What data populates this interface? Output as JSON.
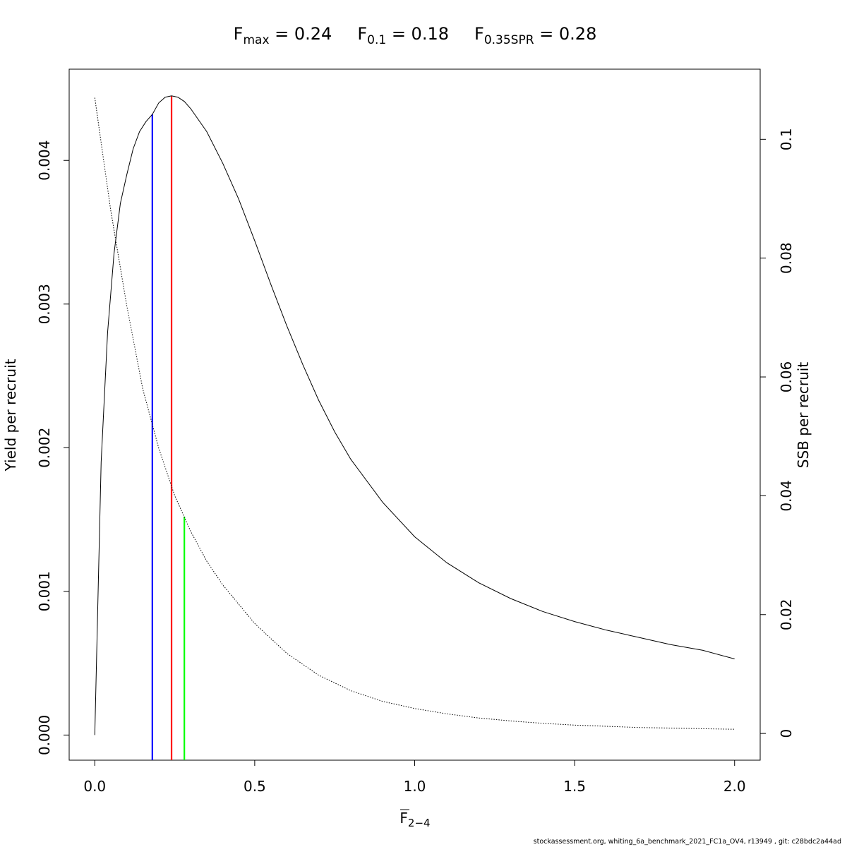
{
  "chart_data": {
    "type": "line",
    "title_parts": [
      {
        "base": "F",
        "sub": "max",
        "value": "0.24"
      },
      {
        "base": "F",
        "sub": "0.1",
        "value": "0.18"
      },
      {
        "base": "F",
        "sub": "0.35SPR",
        "value": "0.28"
      }
    ],
    "xlabel": {
      "base": "F",
      "sub": "2−4",
      "overline": true
    },
    "ylabel_left": "Yield per recruit",
    "ylabel_right": "SSB per recruit",
    "xlim": [
      -0.08,
      2.08
    ],
    "ylim_left": [
      -0.000175,
      0.004635
    ],
    "ylim_right": [
      -0.0045,
      0.1118
    ],
    "x_ticks": [
      0.0,
      0.5,
      1.0,
      1.5,
      2.0
    ],
    "x_tick_labels": [
      "0.0",
      "0.5",
      "1.0",
      "1.5",
      "2.0"
    ],
    "y_left_ticks": [
      0.0,
      0.001,
      0.002,
      0.003,
      0.004
    ],
    "y_left_tick_labels": [
      "0.000",
      "0.001",
      "0.002",
      "0.003",
      "0.004"
    ],
    "y_right_ticks": [
      0,
      0.02,
      0.04,
      0.06,
      0.08,
      0.1
    ],
    "y_right_tick_labels": [
      "0",
      "0.02",
      "0.04",
      "0.06",
      "0.08",
      "0.1"
    ],
    "series": [
      {
        "axis": "left",
        "style": "solid",
        "color": "#000000",
        "x": [
          0.0,
          0.02,
          0.04,
          0.06,
          0.08,
          0.1,
          0.12,
          0.14,
          0.16,
          0.18,
          0.2,
          0.22,
          0.24,
          0.26,
          0.28,
          0.3,
          0.35,
          0.4,
          0.45,
          0.5,
          0.55,
          0.6,
          0.65,
          0.7,
          0.75,
          0.8,
          0.9,
          1.0,
          1.1,
          1.2,
          1.3,
          1.4,
          1.5,
          1.6,
          1.7,
          1.8,
          1.9,
          2.0
        ],
        "y": [
          0.0,
          0.0019,
          0.0028,
          0.00335,
          0.0037,
          0.0039,
          0.00408,
          0.0042,
          0.00427,
          0.00432,
          0.0044,
          0.00444,
          0.00445,
          0.00444,
          0.00441,
          0.00436,
          0.0042,
          0.00398,
          0.00373,
          0.00344,
          0.00314,
          0.00285,
          0.00258,
          0.00233,
          0.00211,
          0.00192,
          0.00162,
          0.00138,
          0.0012,
          0.00106,
          0.00095,
          0.00086,
          0.00079,
          0.00073,
          0.00068,
          0.00063,
          0.00059,
          0.00053
        ]
      },
      {
        "axis": "right",
        "style": "dotted",
        "color": "#000000",
        "x": [
          0.0,
          0.05,
          0.1,
          0.15,
          0.2,
          0.25,
          0.3,
          0.35,
          0.4,
          0.5,
          0.6,
          0.7,
          0.8,
          0.9,
          1.0,
          1.1,
          1.2,
          1.3,
          1.4,
          1.5,
          1.6,
          1.7,
          1.8,
          1.9,
          2.0
        ],
        "y": [
          0.107,
          0.088,
          0.072,
          0.058,
          0.048,
          0.04,
          0.034,
          0.029,
          0.025,
          0.0185,
          0.0135,
          0.0098,
          0.0072,
          0.0054,
          0.0042,
          0.0033,
          0.0026,
          0.0021,
          0.0017,
          0.0014,
          0.0012,
          0.001,
          0.0009,
          0.0008,
          0.0007
        ]
      }
    ],
    "reference_lines": [
      {
        "label": "F0.1",
        "x": 0.18,
        "y_top": 0.00432,
        "axis": "left",
        "color": "#0000ff"
      },
      {
        "label": "Fmax",
        "x": 0.24,
        "y_top": 0.00445,
        "axis": "left",
        "color": "#ff0000"
      },
      {
        "label": "F0.35SPR",
        "x": 0.28,
        "y_top": 0.0365,
        "axis": "right",
        "color": "#00ff00"
      }
    ],
    "grid": false,
    "legend": "none"
  },
  "footer": "stockassessment.org, whiting_6a_benchmark_2021_FC1a_OV4, r13949 , git: c28bdc2a44ad"
}
